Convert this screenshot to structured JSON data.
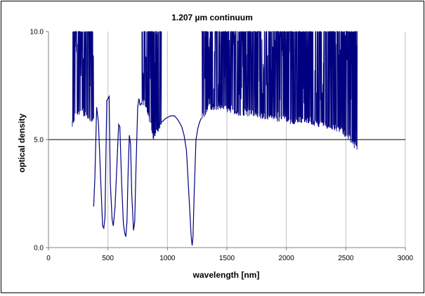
{
  "chart_data": {
    "type": "line",
    "title": "1.207 µm continuum",
    "xlabel": "wavelength [nm]",
    "ylabel": "optical density",
    "xlim": [
      0,
      3000
    ],
    "ylim": [
      0,
      10
    ],
    "x_ticks": [
      "0",
      "500",
      "1000",
      "1500",
      "2000",
      "2500",
      "3000"
    ],
    "y_ticks": [
      "0.0",
      "5.0",
      "10.0"
    ],
    "grid": "vertical",
    "legend": "none",
    "reference_line_y": 5.0,
    "colors": {
      "series": "#000080",
      "axis": "#808080",
      "grid": "#c0c0c0",
      "reference": "#000000"
    },
    "series": [
      {
        "smooth_segments": [
          {
            "x": [
              380,
              390,
              405,
              420,
              440,
              455,
              465,
              475,
              480,
              490,
              510,
              520,
              535,
              545,
              560,
              575,
              590,
              600,
              615,
              630,
              640,
              650,
              660,
              670,
              680,
              690,
              700,
              715,
              725,
              735,
              750,
              760,
              770,
              785
            ],
            "y": [
              1.9,
              3.2,
              6.5,
              5.8,
              3.0,
              1.0,
              0.9,
              1.4,
              3.2,
              6.8,
              7.0,
              3.0,
              1.3,
              1.0,
              1.9,
              3.8,
              5.7,
              5.6,
              3.0,
              1.1,
              0.7,
              0.5,
              1.2,
              3.6,
              5.2,
              4.8,
              2.5,
              0.8,
              1.2,
              3.5,
              6.5,
              6.9,
              6.6,
              6.7
            ]
          },
          {
            "x": [
              950,
              990,
              1030,
              1060,
              1090,
              1120,
              1140,
              1160,
              1175,
              1190,
              1200,
              1208,
              1215,
              1225,
              1240,
              1255,
              1270,
              1285
            ],
            "y": [
              5.8,
              6.0,
              6.1,
              6.1,
              5.9,
              5.6,
              5.2,
              4.5,
              3.0,
              1.5,
              0.5,
              0.1,
              0.5,
              2.5,
              5.0,
              5.5,
              5.8,
              6.0
            ]
          }
        ],
        "noisy_bands": [
          {
            "x_range": [
              200,
              380
            ],
            "floor": [
              [
                200,
                5.6
              ],
              [
                215,
                5.9
              ],
              [
                240,
                6.2
              ],
              [
                280,
                6.3
              ],
              [
                320,
                6.0
              ],
              [
                360,
                5.8
              ],
              [
                380,
                6.0
              ]
            ],
            "clipped_at": 10.0
          },
          {
            "x_range": [
              785,
              950
            ],
            "floor": [
              [
                785,
                6.7
              ],
              [
                820,
                6.5
              ],
              [
                860,
                5.6
              ],
              [
                880,
                5.0
              ],
              [
                900,
                5.2
              ],
              [
                930,
                5.5
              ],
              [
                950,
                5.8
              ]
            ],
            "clipped_at": 10.0
          },
          {
            "x_range": [
              1285,
              2600
            ],
            "floor": [
              [
                1285,
                6.0
              ],
              [
                1350,
                6.4
              ],
              [
                1450,
                6.5
              ],
              [
                1550,
                6.2
              ],
              [
                1650,
                6.2
              ],
              [
                1750,
                6.1
              ],
              [
                1850,
                6.0
              ],
              [
                1950,
                5.9
              ],
              [
                2050,
                5.8
              ],
              [
                2150,
                5.9
              ],
              [
                2250,
                5.7
              ],
              [
                2350,
                5.6
              ],
              [
                2450,
                5.4
              ],
              [
                2520,
                5.1
              ],
              [
                2570,
                4.7
              ],
              [
                2600,
                4.6
              ]
            ],
            "clipped_at": 10.0
          }
        ]
      }
    ]
  }
}
